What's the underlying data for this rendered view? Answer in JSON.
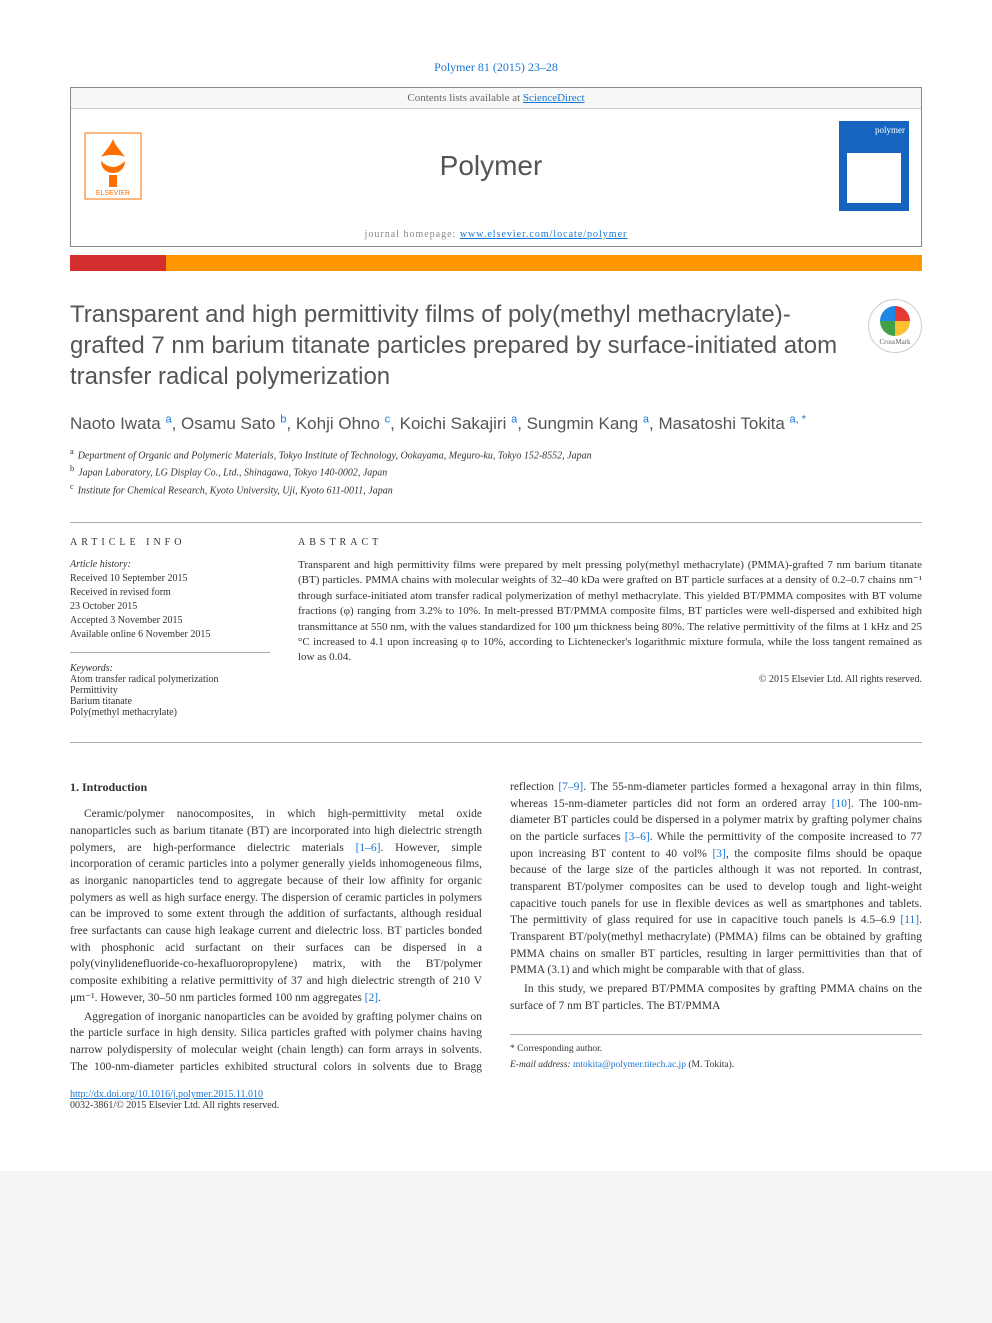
{
  "citation": "Polymer 81 (2015) 23–28",
  "header": {
    "contents_prefix": "Contents lists available at ",
    "contents_link": "ScienceDirect",
    "journal": "Polymer",
    "homepage_label": "journal homepage: ",
    "homepage_url": "www.elsevier.com/locate/polymer"
  },
  "crossmark_label": "CrossMark",
  "title": "Transparent and high permittivity films of poly(methyl methacrylate)-grafted 7 nm barium titanate particles prepared by surface-initiated atom transfer radical polymerization",
  "authors_html": "Naoto Iwata <sup>a</sup>, Osamu Sato <sup>b</sup>, Kohji Ohno <sup>c</sup>, Koichi Sakajiri <sup>a</sup>, Sungmin Kang <sup>a</sup>, Masatoshi Tokita <sup>a, *</sup>",
  "affiliations": [
    {
      "sup": "a",
      "text": "Department of Organic and Polymeric Materials, Tokyo Institute of Technology, Ookayama, Meguro-ku, Tokyo 152-8552, Japan"
    },
    {
      "sup": "b",
      "text": "Japan Laboratory, LG Display Co., Ltd., Shinagawa, Tokyo 140-0002, Japan"
    },
    {
      "sup": "c",
      "text": "Institute for Chemical Research, Kyoto University, Uji, Kyoto 611-0011, Japan"
    }
  ],
  "article_info": {
    "head": "ARTICLE INFO",
    "history_label": "Article history:",
    "history": [
      "Received 10 September 2015",
      "Received in revised form",
      "23 October 2015",
      "Accepted 3 November 2015",
      "Available online 6 November 2015"
    ],
    "keywords_label": "Keywords:",
    "keywords": [
      "Atom transfer radical polymerization",
      "Permittivity",
      "Barium titanate",
      "Poly(methyl methacrylate)"
    ]
  },
  "abstract": {
    "head": "ABSTRACT",
    "text": "Transparent and high permittivity films were prepared by melt pressing poly(methyl methacrylate) (PMMA)-grafted 7 nm barium titanate (BT) particles. PMMA chains with molecular weights of 32–40 kDa were grafted on BT particle surfaces at a density of 0.2–0.7 chains nm⁻¹ through surface-initiated atom transfer radical polymerization of methyl methacrylate. This yielded BT/PMMA composites with BT volume fractions (φ) ranging from 3.2% to 10%. In melt-pressed BT/PMMA composite films, BT particles were well-dispersed and exhibited high transmittance at 550 nm, with the values standardized for 100 μm thickness being 80%. The relative permittivity of the films at 1 kHz and 25 °C increased to 4.1 upon increasing φ to 10%, according to Lichtenecker's logarithmic mixture formula, while the loss tangent remained as low as 0.04.",
    "copyright": "© 2015 Elsevier Ltd. All rights reserved."
  },
  "intro": {
    "head": "1. Introduction",
    "p1_a": "Ceramic/polymer nanocomposites, in which high-permittivity metal oxide nanoparticles such as barium titanate (BT) are incorporated into high dielectric strength polymers, are high-performance dielectric materials ",
    "p1_link1": "[1–6]",
    "p1_b": ". However, simple incorporation of ceramic particles into a polymer generally yields inhomogeneous films, as inorganic nanoparticles tend to aggregate because of their low affinity for organic polymers as well as high surface energy. The dispersion of ceramic particles in polymers can be improved to some extent through the addition of surfactants, although residual free surfactants can cause high leakage current and dielectric loss. BT particles bonded with phosphonic acid surfactant on their surfaces can be dispersed in a poly(vinylidenefluoride-co-hexafluoropropylene) matrix, with the BT/polymer composite exhibiting a relative permittivity of 37 and high dielectric strength of 210 V μm⁻¹. However, 30–50 nm particles formed 100 nm aggregates ",
    "p1_link2": "[2]",
    "p1_c": ".",
    "p2_a": "Aggregation of inorganic nanoparticles can be avoided by ",
    "p2_b": "grafting polymer chains on the particle surface in high density. Silica particles grafted with polymer chains having narrow polydispersity of molecular weight (chain length) can form arrays in solvents. The 100-nm-diameter particles exhibited structural colors in solvents due to Bragg reflection ",
    "p2_link1": "[7–9]",
    "p2_c": ". The 55-nm-diameter particles formed a hexagonal array in thin films, whereas 15-nm-diameter particles did not form an ordered array ",
    "p2_link2": "[10]",
    "p2_d": ". The 100-nm-diameter BT particles could be dispersed in a polymer matrix by grafting polymer chains on the particle surfaces ",
    "p2_link3": "[3–6]",
    "p2_e": ". While the permittivity of the composite increased to 77 upon increasing BT content to 40 vol% ",
    "p2_link4": "[3]",
    "p2_f": ", the composite films should be opaque because of the large size of the particles although it was not reported. In contrast, transparent BT/polymer composites can be used to develop tough and light-weight capacitive touch panels for use in flexible devices as well as smartphones and tablets. The permittivity of glass required for use in capacitive touch panels is 4.5–6.9 ",
    "p2_link5": "[11]",
    "p2_g": ". Transparent BT/poly(methyl methacrylate) (PMMA) films can be obtained by grafting PMMA chains on smaller BT particles, resulting in larger permittivities than that of PMMA (3.1) and which might be comparable with that of glass.",
    "p3": "In this study, we prepared BT/PMMA composites by grafting PMMA chains on the surface of 7 nm BT particles. The BT/PMMA"
  },
  "footer": {
    "corr": "* Corresponding author.",
    "email_label": "E-mail address: ",
    "email": "mtokita@polymer.titech.ac.jp",
    "email_name": " (M. Tokita).",
    "doi": "http://dx.doi.org/10.1016/j.polymer.2015.11.010",
    "issn": "0032-3861/© 2015 Elsevier Ltd. All rights reserved."
  },
  "colors": {
    "link": "#1976d2",
    "bar_red": "#d32f2f",
    "bar_orange": "#ff9800",
    "elsevier": "#ff6f00",
    "cover": "#1565c0"
  }
}
